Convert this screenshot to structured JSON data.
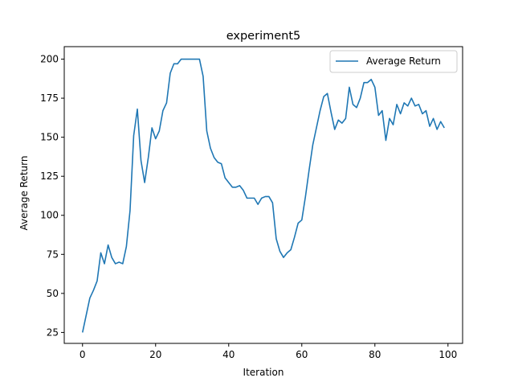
{
  "chart_data": {
    "type": "line",
    "title": "experiment5",
    "xlabel": "Iteration",
    "ylabel": "Average Return",
    "xlim": [
      -5,
      104
    ],
    "ylim": [
      18,
      208
    ],
    "xticks": [
      0,
      20,
      40,
      60,
      80,
      100
    ],
    "yticks": [
      25,
      50,
      75,
      100,
      125,
      150,
      175,
      200
    ],
    "grid": false,
    "legend_position": "top-right",
    "series": [
      {
        "name": "Average Return",
        "color": "#1f77b4",
        "x": [
          0,
          1,
          2,
          3,
          4,
          5,
          6,
          7,
          8,
          9,
          10,
          11,
          12,
          13,
          14,
          15,
          16,
          17,
          18,
          19,
          20,
          21,
          22,
          23,
          24,
          25,
          26,
          27,
          28,
          29,
          30,
          31,
          32,
          33,
          34,
          35,
          36,
          37,
          38,
          39,
          40,
          41,
          42,
          43,
          44,
          45,
          46,
          47,
          48,
          49,
          50,
          51,
          52,
          53,
          54,
          55,
          56,
          57,
          58,
          59,
          60,
          61,
          62,
          63,
          64,
          65,
          66,
          67,
          68,
          69,
          70,
          71,
          72,
          73,
          74,
          75,
          76,
          77,
          78,
          79,
          80,
          81,
          82,
          83,
          84,
          85,
          86,
          87,
          88,
          89,
          90,
          91,
          92,
          93,
          94,
          95,
          96,
          97,
          98,
          99
        ],
        "y": [
          25,
          36,
          47,
          52,
          58,
          76,
          69,
          81,
          73,
          69,
          70,
          69,
          80,
          103,
          151,
          168,
          135,
          121,
          137,
          156,
          149,
          154,
          167,
          172,
          191,
          197,
          197,
          200,
          200,
          200,
          200,
          200,
          200,
          189,
          154,
          143,
          137,
          134,
          133,
          124,
          121,
          118,
          118,
          119,
          116,
          111,
          111,
          111,
          107,
          111,
          112,
          112,
          108,
          85,
          77,
          73,
          76,
          78,
          86,
          95,
          97,
          112,
          129,
          145,
          156,
          167,
          176,
          178,
          166,
          155,
          161,
          159,
          162,
          182,
          171,
          169,
          175,
          185,
          185,
          187,
          182,
          164,
          167,
          148,
          162,
          158,
          171,
          165,
          172,
          170,
          175,
          170,
          171,
          165,
          167,
          157,
          162,
          155,
          160,
          156
        ]
      }
    ]
  }
}
